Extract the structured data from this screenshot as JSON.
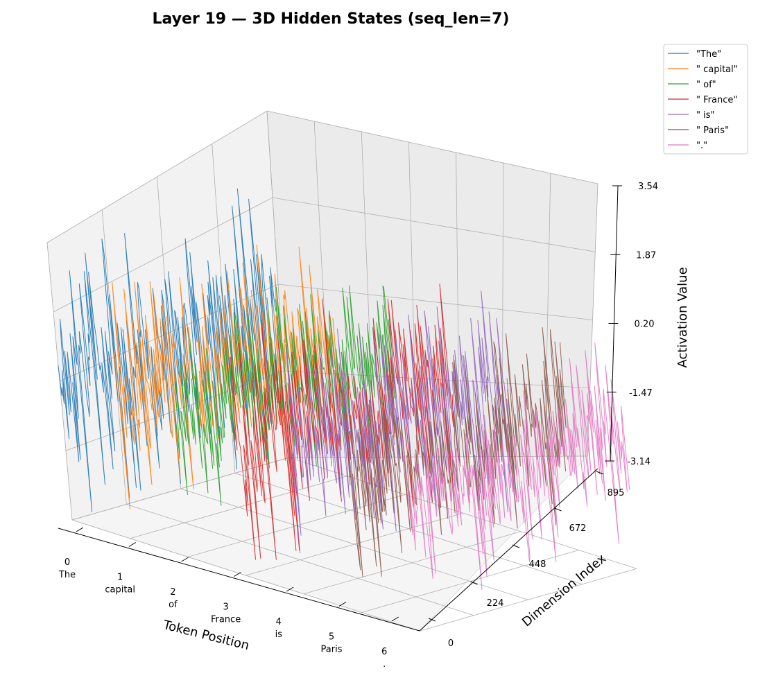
{
  "chart_data": {
    "type": "line",
    "projection": "3d",
    "title": "Layer 19 — 3D Hidden States (seq_len=7)",
    "xlabel": "Token Position",
    "ylabel": "Dimension Index",
    "zlabel": "Activation Value",
    "x_ticks": [
      0,
      1,
      2,
      3,
      4,
      5,
      6
    ],
    "x_tick_tokens": [
      "The",
      "capital",
      "of",
      "France",
      "is",
      "Paris",
      "."
    ],
    "y_ticks": [
      "0",
      "224",
      "448",
      "672",
      "895"
    ],
    "z_ticks": [
      "-3.14",
      "-1.47",
      "0.20",
      "1.87",
      "3.54"
    ],
    "xlim": [
      0,
      6
    ],
    "ylim": [
      0,
      895
    ],
    "zlim": [
      -3.14,
      3.54
    ],
    "grid": true,
    "legend_position": "upper-right outside",
    "series": [
      {
        "name": "\"The\"",
        "x": 0,
        "color": "#1f77b4",
        "z_range": [
          -3.14,
          3.54
        ]
      },
      {
        "name": "\" capital\"",
        "x": 1,
        "color": "#ff7f0e",
        "z_range": [
          -2.5,
          3.0
        ]
      },
      {
        "name": "\" of\"",
        "x": 2,
        "color": "#2ca02c",
        "z_range": [
          -2.2,
          2.6
        ]
      },
      {
        "name": "\" France\"",
        "x": 3,
        "color": "#d62728",
        "z_range": [
          -3.0,
          3.0
        ]
      },
      {
        "name": "\" is\"",
        "x": 4,
        "color": "#9467bd",
        "z_range": [
          -2.6,
          2.9
        ]
      },
      {
        "name": "\" Paris\"",
        "x": 5,
        "color": "#8c564b",
        "z_range": [
          -2.5,
          2.5
        ]
      },
      {
        "name": "\".\"",
        "x": 6,
        "color": "#e377c2",
        "z_range": [
          -2.6,
          2.6
        ]
      }
    ]
  }
}
